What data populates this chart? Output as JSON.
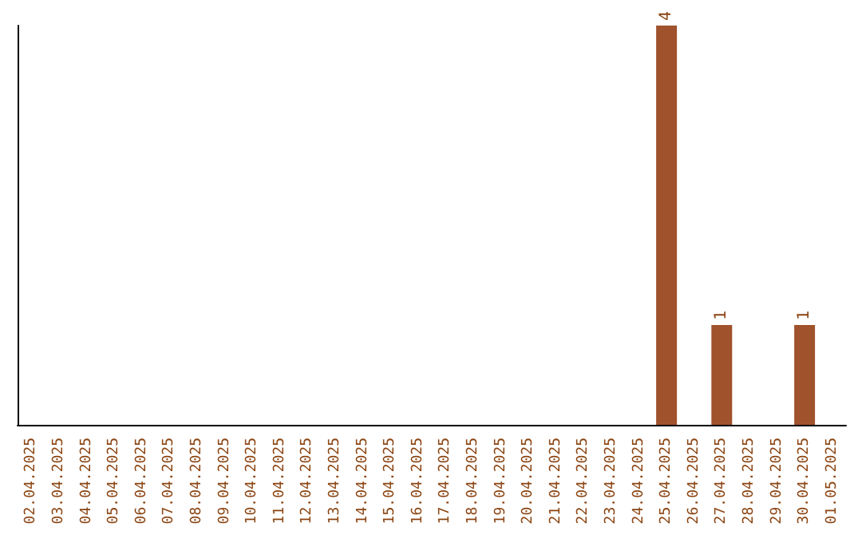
{
  "chart_data": {
    "type": "bar",
    "categories": [
      "02.04.2025",
      "03.04.2025",
      "04.04.2025",
      "05.04.2025",
      "06.04.2025",
      "07.04.2025",
      "08.04.2025",
      "09.04.2025",
      "10.04.2025",
      "11.04.2025",
      "12.04.2025",
      "13.04.2025",
      "14.04.2025",
      "15.04.2025",
      "16.04.2025",
      "17.04.2025",
      "18.04.2025",
      "19.04.2025",
      "20.04.2025",
      "21.04.2025",
      "22.04.2025",
      "23.04.2025",
      "24.04.2025",
      "25.04.2025",
      "26.04.2025",
      "27.04.2025",
      "28.04.2025",
      "29.04.2025",
      "30.04.2025",
      "01.05.2025"
    ],
    "values": [
      null,
      null,
      null,
      null,
      null,
      null,
      null,
      null,
      null,
      null,
      null,
      null,
      null,
      null,
      null,
      null,
      null,
      null,
      null,
      null,
      null,
      null,
      null,
      4,
      null,
      1,
      null,
      null,
      1,
      null
    ],
    "data_labels": true,
    "color": "#a0522d",
    "tick_labels": "x",
    "grid": false
  }
}
